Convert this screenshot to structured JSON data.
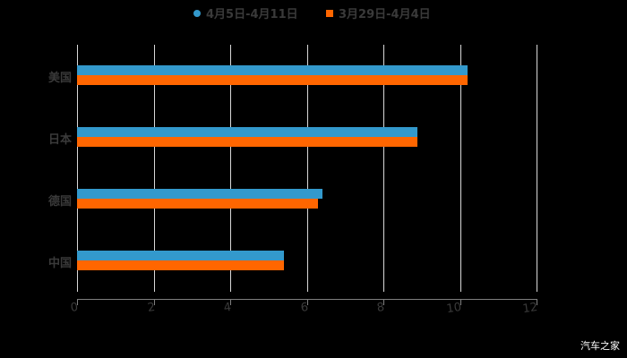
{
  "chart_data": {
    "type": "bar",
    "orientation": "horizontal",
    "title": "",
    "categories": [
      "美国",
      "日本",
      "德国",
      "中国"
    ],
    "series": [
      {
        "name": "4月5日-4月11日",
        "color": "#3399cc",
        "marker": "circle",
        "values": [
          10.2,
          8.9,
          6.4,
          5.4
        ]
      },
      {
        "name": "3月29日-4月4日",
        "color": "#ff6600",
        "marker": "square",
        "values": [
          10.2,
          8.9,
          6.3,
          5.4
        ]
      }
    ],
    "xlabel": "",
    "ylabel": "",
    "xlim": [
      0,
      12
    ],
    "xticks": [
      "0",
      "2",
      "4",
      "6",
      "8",
      "10",
      "12"
    ],
    "grid": true,
    "legend_position": "top"
  },
  "legend": {
    "items": [
      {
        "label": "4月5日-4月11日",
        "color": "#3399cc"
      },
      {
        "label": "3月29日-4月4日",
        "color": "#ff6600"
      }
    ]
  },
  "watermark": "汽车之家"
}
